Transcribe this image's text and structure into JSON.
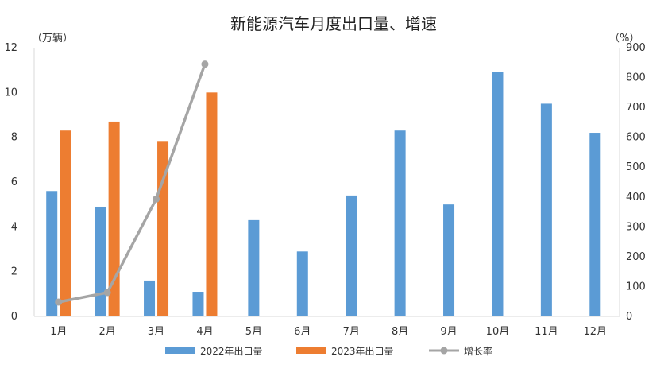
{
  "chart_data": {
    "type": "bar",
    "title": "新能源汽车月度出口量、增速",
    "y_left_unit": "（万辆）",
    "y_right_unit": "（%）",
    "categories": [
      "1月",
      "2月",
      "3月",
      "4月",
      "5月",
      "6月",
      "7月",
      "8月",
      "9月",
      "10月",
      "11月",
      "12月"
    ],
    "y_left_ticks": [
      "0",
      "2",
      "4",
      "6",
      "8",
      "10",
      "12"
    ],
    "y_right_ticks": [
      "0",
      "100",
      "200",
      "300",
      "400",
      "500",
      "600",
      "700",
      "800",
      "900"
    ],
    "ylim_left": [
      0,
      12
    ],
    "ylim_right": [
      0,
      900
    ],
    "series": [
      {
        "name": "2022年出口量",
        "type": "bar",
        "axis": "left",
        "color": "#5B9BD5",
        "values": [
          5.6,
          4.9,
          1.6,
          1.1,
          4.3,
          2.9,
          5.4,
          8.3,
          5.0,
          10.9,
          9.5,
          8.2
        ]
      },
      {
        "name": "2023年出口量",
        "type": "bar",
        "axis": "left",
        "color": "#ED7D31",
        "values": [
          8.3,
          8.7,
          7.8,
          10.0,
          null,
          null,
          null,
          null,
          null,
          null,
          null,
          null
        ]
      },
      {
        "name": "增长率",
        "type": "line",
        "axis": "right",
        "color": "#A5A5A5",
        "values": [
          48,
          80,
          393,
          845,
          null,
          null,
          null,
          null,
          null,
          null,
          null,
          null
        ]
      }
    ],
    "legend_position": "bottom",
    "grid": false
  }
}
